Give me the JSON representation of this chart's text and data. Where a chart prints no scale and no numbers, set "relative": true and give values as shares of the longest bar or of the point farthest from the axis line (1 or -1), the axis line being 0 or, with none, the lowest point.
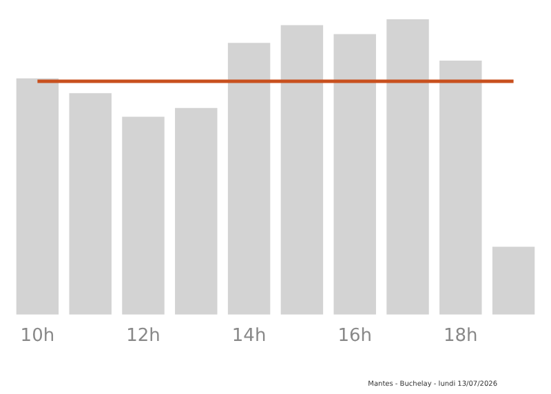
{
  "chart_data": {
    "type": "bar",
    "relative": true,
    "categories": [
      "10h",
      null,
      "12h",
      null,
      "14h",
      null,
      "16h",
      null,
      "18h",
      null
    ],
    "values": [
      0.8,
      0.75,
      0.67,
      0.7,
      0.92,
      0.98,
      0.95,
      1,
      0.86,
      0.23
    ],
    "color": "#d3d3d3",
    "ref_lines": [
      {
        "axis": "y",
        "value": 0.79,
        "color": "#c8501e"
      }
    ],
    "annotations": [
      "Mantes - Buchelay - lundi 13/07/2026"
    ],
    "grid": false,
    "legend": false
  }
}
